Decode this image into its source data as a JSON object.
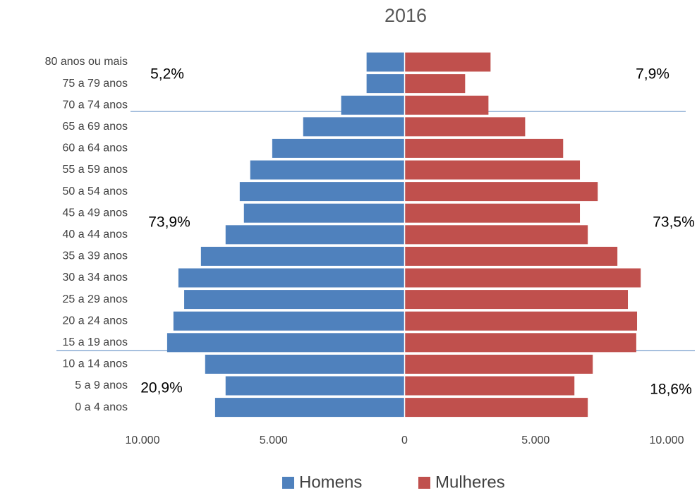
{
  "chart_data": {
    "type": "pyramid",
    "title": "2016",
    "categories": [
      "80 anos ou mais",
      "75 a 79 anos",
      "70 a 74 anos",
      "65 a 69 anos",
      "60 a 64 anos",
      "55 a 59 anos",
      "50 a 54 anos",
      "45 a 49 anos",
      "40 a 44 anos",
      "35 a 39 anos",
      "30 a 34 anos",
      "25 a 29 anos",
      "20 a 24 anos",
      "15 a 19 anos",
      "10 a 14 anos",
      "5 a 9 anos",
      "0 a 4 anos"
    ],
    "series": [
      {
        "name": "Homens",
        "color": "#4f81bd",
        "values": [
          -1450,
          -1450,
          -2420,
          -3870,
          -5050,
          -5890,
          -6290,
          -6130,
          -6830,
          -7770,
          -8630,
          -8410,
          -8820,
          -9060,
          -7610,
          -6830,
          -7230
        ]
      },
      {
        "name": "Mulheres",
        "color": "#c0504d",
        "values": [
          3280,
          2310,
          3200,
          4600,
          6050,
          6690,
          7370,
          6690,
          6990,
          8120,
          9010,
          8520,
          8870,
          8840,
          7180,
          6480,
          6990
        ]
      }
    ],
    "xlim": [
      -10000,
      10000
    ],
    "xticks": [
      {
        "value": -10000,
        "label": "10.000"
      },
      {
        "value": -5000,
        "label": "5.000"
      },
      0,
      {
        "value": 5000,
        "label": "5.000"
      },
      {
        "value": 10000,
        "label": "10.000"
      }
    ],
    "annotations": [
      "5,2%",
      "7,9%",
      "73,9%",
      "73,5%",
      "20,9%",
      "18,6%"
    ],
    "legend": "bottom"
  }
}
